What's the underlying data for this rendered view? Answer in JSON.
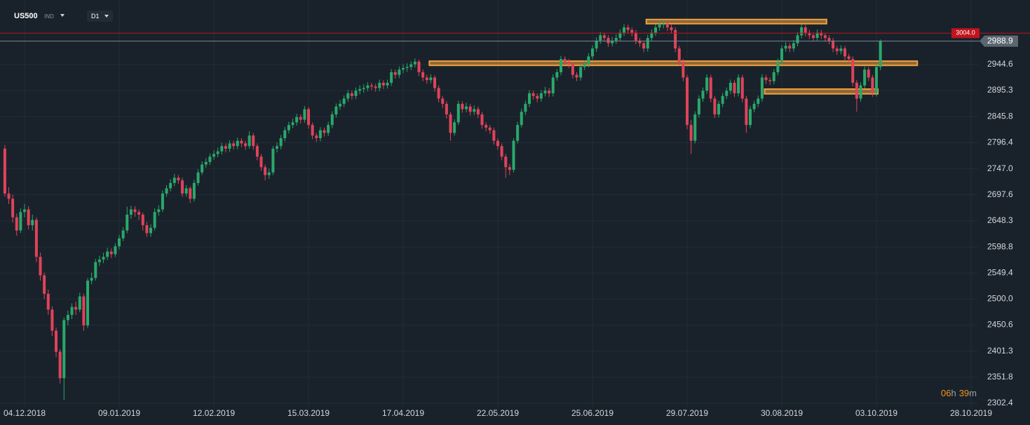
{
  "chart_data": {
    "type": "candlestick",
    "symbol": "US500",
    "market": "IND",
    "timeframe": "D1",
    "countdown": {
      "hours": "06",
      "hours_unit": "h",
      "minutes": "39",
      "minutes_unit": "m"
    },
    "categories": [
      null,
      null,
      null,
      null,
      null,
      "04.12.2018",
      null,
      null,
      null,
      null,
      null,
      null,
      null,
      null,
      null,
      null,
      null,
      null,
      null,
      null,
      null,
      null,
      null,
      null,
      null,
      null,
      null,
      null,
      null,
      "09.01.2019",
      null,
      null,
      null,
      null,
      null,
      null,
      null,
      null,
      null,
      null,
      null,
      null,
      null,
      null,
      null,
      null,
      null,
      null,
      null,
      null,
      null,
      null,
      null,
      "12.02.2019",
      null,
      null,
      null,
      null,
      null,
      null,
      null,
      null,
      null,
      null,
      null,
      null,
      null,
      null,
      null,
      null,
      null,
      null,
      null,
      null,
      null,
      null,
      null,
      "15.03.2019",
      null,
      null,
      null,
      null,
      null,
      null,
      null,
      null,
      null,
      null,
      null,
      null,
      null,
      null,
      null,
      null,
      null,
      null,
      null,
      null,
      null,
      null,
      null,
      "17.04.2019",
      null,
      null,
      null,
      null,
      null,
      null,
      null,
      null,
      null,
      null,
      null,
      null,
      null,
      null,
      null,
      null,
      null,
      null,
      null,
      null,
      null,
      null,
      null,
      "22.05.2019",
      null,
      null,
      null,
      null,
      null,
      null,
      null,
      null,
      null,
      null,
      null,
      null,
      null,
      null,
      null,
      null,
      null,
      null,
      null,
      null,
      null,
      null,
      null,
      "25.06.2019",
      null,
      null,
      null,
      null,
      null,
      null,
      null,
      null,
      null,
      null,
      null,
      null,
      null,
      null,
      null,
      null,
      null,
      null,
      null,
      null,
      null,
      null,
      null,
      "29.07.2019",
      null,
      null,
      null,
      null,
      null,
      null,
      null,
      null,
      null,
      null,
      null,
      null,
      null,
      null,
      null,
      null,
      null,
      null,
      null,
      null,
      null,
      null,
      null,
      "30.08.2019",
      null,
      null,
      null,
      null,
      null,
      null,
      null,
      null,
      null,
      null,
      null,
      null,
      null,
      null,
      null,
      null,
      null,
      null,
      null,
      null,
      null,
      null,
      null,
      "03.10.2019",
      null,
      null,
      null,
      null,
      null,
      null,
      null,
      null,
      null,
      null,
      null,
      null,
      null,
      null,
      null,
      null,
      null,
      null,
      null,
      null,
      null,
      null,
      null,
      "28.10.2019"
    ],
    "open": [
      2785,
      2700,
      2690,
      2655,
      2630,
      2665,
      2670,
      2640,
      2650,
      2580,
      2545,
      2510,
      2480,
      2440,
      2400,
      2350,
      2460,
      2470,
      2485,
      2480,
      2505,
      2450,
      2535,
      2540,
      2570,
      2575,
      2580,
      2590,
      2585,
      2600,
      2615,
      2630,
      2660,
      2670,
      2665,
      2660,
      2640,
      2625,
      2635,
      2665,
      2670,
      2700,
      2710,
      2720,
      2730,
      2725,
      2700,
      2710,
      2690,
      2720,
      2740,
      2755,
      2760,
      2770,
      2775,
      2780,
      2790,
      2785,
      2795,
      2790,
      2800,
      2795,
      2790,
      2810,
      2790,
      2770,
      2750,
      2735,
      2740,
      2785,
      2790,
      2805,
      2820,
      2830,
      2835,
      2845,
      2840,
      2860,
      2830,
      2810,
      2805,
      2820,
      2815,
      2830,
      2850,
      2865,
      2870,
      2880,
      2890,
      2885,
      2895,
      2898,
      2900,
      2905,
      2903,
      2900,
      2910,
      2905,
      2910,
      2930,
      2925,
      2935,
      2938,
      2940,
      2945,
      2950,
      2930,
      2920,
      2915,
      2920,
      2900,
      2880,
      2870,
      2850,
      2815,
      2835,
      2870,
      2860,
      2865,
      2855,
      2860,
      2850,
      2830,
      2825,
      2820,
      2800,
      2790,
      2770,
      2750,
      2745,
      2800,
      2830,
      2855,
      2870,
      2890,
      2885,
      2880,
      2890,
      2895,
      2890,
      2920,
      2930,
      2955,
      2950,
      2945,
      2925,
      2920,
      2940,
      2945,
      2960,
      2975,
      2990,
      3000,
      2995,
      2985,
      2990,
      2995,
      3005,
      3015,
      3010,
      3005,
      2990,
      2985,
      2975,
      2995,
      3005,
      3015,
      3020,
      3022,
      3015,
      3010,
      2975,
      2950,
      2920,
      2830,
      2800,
      2850,
      2880,
      2895,
      2920,
      2880,
      2850,
      2870,
      2885,
      2895,
      2910,
      2890,
      2920,
      2880,
      2830,
      2860,
      2870,
      2880,
      2920,
      2915,
      2913,
      2930,
      2950,
      2975,
      2980,
      2975,
      2985,
      3000,
      3015,
      3005,
      3000,
      2995,
      3005,
      3000,
      2995,
      2990,
      2975,
      2970,
      2975,
      2960,
      2955,
      2910,
      2880,
      2905,
      2935,
      2920,
      2890,
      2940,
      null,
      null,
      null,
      null,
      null,
      null,
      null,
      null,
      null,
      null,
      null,
      null,
      null,
      null,
      null,
      null,
      null,
      null,
      null,
      null,
      null,
      null,
      null
    ],
    "high": [
      2792,
      2712,
      2698,
      2662,
      2672,
      2680,
      2676,
      2660,
      2655,
      2588,
      2550,
      2518,
      2486,
      2446,
      2405,
      2465,
      2478,
      2492,
      2495,
      2512,
      2510,
      2540,
      2550,
      2576,
      2582,
      2588,
      2597,
      2596,
      2606,
      2622,
      2636,
      2675,
      2677,
      2676,
      2670,
      2664,
      2646,
      2642,
      2672,
      2678,
      2706,
      2716,
      2727,
      2737,
      2735,
      2730,
      2716,
      2714,
      2726,
      2746,
      2761,
      2767,
      2776,
      2782,
      2787,
      2796,
      2795,
      2801,
      2800,
      2806,
      2805,
      2800,
      2818,
      2815,
      2795,
      2775,
      2755,
      2747,
      2790,
      2797,
      2811,
      2826,
      2836,
      2842,
      2851,
      2850,
      2866,
      2864,
      2835,
      2815,
      2826,
      2825,
      2836,
      2856,
      2871,
      2877,
      2886,
      2896,
      2895,
      2901,
      2905,
      2907,
      2911,
      2910,
      2908,
      2916,
      2915,
      2916,
      2936,
      2935,
      2941,
      2945,
      2947,
      2951,
      2956,
      2954,
      2935,
      2925,
      2926,
      2924,
      2905,
      2885,
      2875,
      2855,
      2841,
      2876,
      2875,
      2872,
      2870,
      2867,
      2865,
      2855,
      2835,
      2830,
      2825,
      2805,
      2795,
      2775,
      2756,
      2805,
      2836,
      2861,
      2876,
      2896,
      2895,
      2890,
      2896,
      2902,
      2900,
      2926,
      2936,
      2961,
      2960,
      2955,
      2950,
      2930,
      2946,
      2952,
      2966,
      2981,
      2996,
      3006,
      3005,
      3000,
      2997,
      3002,
      3011,
      3021,
      3020,
      3015,
      3010,
      2995,
      2990,
      3001,
      3011,
      3021,
      3027,
      3029,
      3027,
      3020,
      3015,
      2980,
      2955,
      2925,
      2840,
      2856,
      2886,
      2901,
      2926,
      2925,
      2885,
      2876,
      2891,
      2901,
      2916,
      2915,
      2926,
      2925,
      2885,
      2866,
      2876,
      2886,
      2926,
      2925,
      2920,
      2936,
      2956,
      2981,
      2987,
      2985,
      2991,
      3006,
      3021,
      3020,
      3010,
      3005,
      3011,
      3010,
      3005,
      3000,
      2995,
      2980,
      2981,
      2980,
      2965,
      2960,
      2915,
      2911,
      2941,
      2940,
      2925,
      2946,
      2992,
      null,
      null,
      null,
      null,
      null,
      null,
      null,
      null,
      null,
      null,
      null,
      null,
      null,
      null,
      null,
      null,
      null,
      null,
      null,
      null,
      null,
      null,
      null
    ],
    "low": [
      2694,
      2680,
      2645,
      2620,
      2625,
      2655,
      2632,
      2630,
      2570,
      2535,
      2500,
      2470,
      2430,
      2390,
      2340,
      2309,
      2450,
      2462,
      2470,
      2475,
      2440,
      2445,
      2528,
      2535,
      2563,
      2568,
      2574,
      2578,
      2580,
      2594,
      2610,
      2625,
      2652,
      2656,
      2650,
      2630,
      2618,
      2618,
      2630,
      2658,
      2665,
      2694,
      2704,
      2714,
      2718,
      2694,
      2694,
      2682,
      2685,
      2715,
      2735,
      2749,
      2754,
      2764,
      2769,
      2774,
      2778,
      2779,
      2783,
      2784,
      2788,
      2783,
      2785,
      2783,
      2763,
      2743,
      2725,
      2728,
      2735,
      2778,
      2784,
      2799,
      2814,
      2824,
      2829,
      2833,
      2834,
      2823,
      2803,
      2798,
      2799,
      2808,
      2809,
      2824,
      2844,
      2859,
      2864,
      2874,
      2878,
      2879,
      2888,
      2891,
      2894,
      2896,
      2893,
      2894,
      2898,
      2899,
      2904,
      2918,
      2919,
      2928,
      2931,
      2934,
      2939,
      2923,
      2913,
      2908,
      2909,
      2893,
      2873,
      2862,
      2842,
      2800,
      2810,
      2830,
      2853,
      2854,
      2848,
      2849,
      2843,
      2823,
      2818,
      2813,
      2793,
      2783,
      2763,
      2730,
      2735,
      2740,
      2795,
      2825,
      2849,
      2864,
      2878,
      2873,
      2874,
      2884,
      2883,
      2884,
      2914,
      2924,
      2943,
      2938,
      2918,
      2913,
      2914,
      2934,
      2939,
      2954,
      2969,
      2984,
      2988,
      2978,
      2979,
      2984,
      2989,
      2999,
      3003,
      2998,
      2983,
      2978,
      2968,
      2969,
      2989,
      2999,
      3009,
      3013,
      3008,
      3003,
      2968,
      2943,
      2913,
      2822,
      2775,
      2795,
      2844,
      2874,
      2889,
      2873,
      2843,
      2844,
      2864,
      2879,
      2889,
      2883,
      2884,
      2873,
      2815,
      2824,
      2854,
      2864,
      2874,
      2908,
      2906,
      2907,
      2924,
      2944,
      2969,
      2968,
      2969,
      2979,
      2994,
      2998,
      2993,
      2988,
      2989,
      2993,
      2988,
      2983,
      2968,
      2963,
      2964,
      2953,
      2948,
      2903,
      2855,
      2874,
      2899,
      2913,
      2883,
      2884,
      2934,
      null,
      null,
      null,
      null,
      null,
      null,
      null,
      null,
      null,
      null,
      null,
      null,
      null,
      null,
      null,
      null,
      null,
      null,
      null,
      null,
      null,
      null,
      null
    ],
    "close": [
      2700,
      2690,
      2655,
      2630,
      2665,
      2670,
      2640,
      2650,
      2580,
      2545,
      2510,
      2480,
      2440,
      2400,
      2350,
      2460,
      2470,
      2485,
      2480,
      2505,
      2450,
      2535,
      2540,
      2570,
      2575,
      2580,
      2590,
      2585,
      2600,
      2615,
      2630,
      2660,
      2670,
      2665,
      2660,
      2640,
      2625,
      2635,
      2665,
      2670,
      2700,
      2710,
      2720,
      2730,
      2725,
      2700,
      2710,
      2690,
      2720,
      2740,
      2755,
      2760,
      2770,
      2775,
      2780,
      2790,
      2785,
      2795,
      2790,
      2800,
      2795,
      2790,
      2810,
      2790,
      2770,
      2750,
      2735,
      2740,
      2785,
      2790,
      2805,
      2820,
      2830,
      2835,
      2845,
      2840,
      2860,
      2830,
      2810,
      2805,
      2820,
      2815,
      2830,
      2850,
      2865,
      2870,
      2880,
      2890,
      2885,
      2895,
      2898,
      2900,
      2905,
      2903,
      2900,
      2910,
      2905,
      2910,
      2930,
      2925,
      2935,
      2938,
      2940,
      2945,
      2950,
      2930,
      2920,
      2915,
      2920,
      2900,
      2880,
      2870,
      2850,
      2815,
      2835,
      2870,
      2860,
      2865,
      2855,
      2860,
      2850,
      2830,
      2825,
      2820,
      2800,
      2790,
      2770,
      2750,
      2745,
      2800,
      2830,
      2855,
      2870,
      2890,
      2885,
      2880,
      2890,
      2895,
      2890,
      2920,
      2930,
      2955,
      2950,
      2945,
      2925,
      2920,
      2940,
      2945,
      2960,
      2975,
      2990,
      3000,
      2995,
      2985,
      2990,
      2995,
      3005,
      3015,
      3010,
      3005,
      2990,
      2985,
      2975,
      2995,
      3005,
      3015,
      3020,
      3022,
      3015,
      3010,
      2975,
      2950,
      2920,
      2830,
      2800,
      2850,
      2880,
      2895,
      2920,
      2880,
      2850,
      2870,
      2885,
      2895,
      2910,
      2890,
      2920,
      2880,
      2830,
      2860,
      2870,
      2880,
      2920,
      2915,
      2913,
      2930,
      2950,
      2975,
      2980,
      2975,
      2985,
      3000,
      3015,
      3005,
      3000,
      2995,
      3005,
      3000,
      2995,
      2990,
      2975,
      2970,
      2975,
      2960,
      2955,
      2910,
      2880,
      2905,
      2935,
      2920,
      2890,
      2940,
      2988.9,
      null,
      null,
      null,
      null,
      null,
      null,
      null,
      null,
      null,
      null,
      null,
      null,
      null,
      null,
      null,
      null,
      null,
      null,
      null,
      null,
      null,
      null,
      null
    ],
    "up_color": "#2aa86b",
    "down_color": "#e0435a",
    "current_price": 2988.9,
    "alert_line": {
      "value": 3004,
      "label": "3004.0",
      "color": "#c0141e"
    },
    "zones": [
      {
        "start": 163,
        "end": 208,
        "low": 3022,
        "high": 3030
      },
      {
        "start": 108,
        "end": 231,
        "low": 2943,
        "high": 2951
      },
      {
        "start": 193,
        "end": 221,
        "low": 2889,
        "high": 2898
      }
    ],
    "zone_color": "#f0a040",
    "ylim": [
      2295.8,
      3066.9
    ],
    "yticks": [
      2302.4,
      2351.8,
      2401.3,
      2450.6,
      {
        "value": 2500,
        "label": "2500.0"
      },
      2549.4,
      2598.8,
      2648.3,
      2697.6,
      {
        "value": 2747,
        "label": "2747.0"
      },
      2796.4,
      2845.8,
      2895.3,
      2944.6
    ],
    "grid": true
  }
}
